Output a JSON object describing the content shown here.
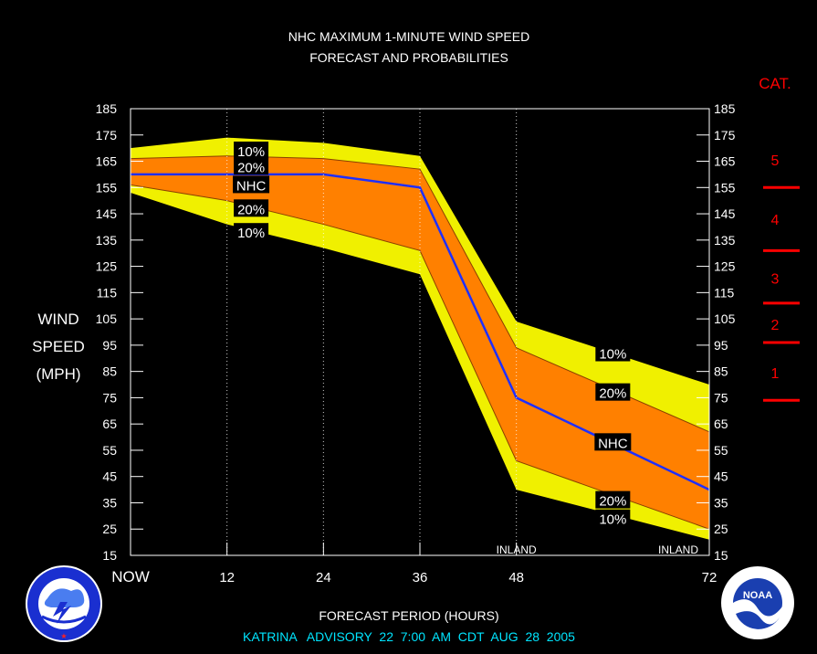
{
  "chart_data": {
    "type": "area",
    "title": "NHC MAXIMUM 1-MINUTE WIND SPEED",
    "subtitle": "FORECAST AND PROBABILITIES",
    "xlabel": "FORECAST PERIOD (HOURS)",
    "ylabel_lines": [
      "WIND",
      "SPEED",
      "(MPH)"
    ],
    "x_ticks": [
      {
        "x": 0,
        "label": "NOW"
      },
      {
        "x": 12,
        "label": "12"
      },
      {
        "x": 24,
        "label": "24"
      },
      {
        "x": 36,
        "label": "36"
      },
      {
        "x": 48,
        "label": "48"
      },
      {
        "x": 72,
        "label": "72"
      }
    ],
    "xlim": [
      0,
      72
    ],
    "ylim": [
      15,
      185
    ],
    "y_ticks": [
      15,
      25,
      35,
      45,
      55,
      65,
      75,
      85,
      95,
      105,
      115,
      125,
      135,
      145,
      155,
      165,
      175,
      185
    ],
    "x": [
      0,
      12,
      24,
      36,
      48,
      72
    ],
    "series": [
      {
        "name": "10%",
        "values": [
          170,
          174,
          172,
          167,
          104,
          80
        ],
        "color": "#f0f000"
      },
      {
        "name": "20%",
        "values": [
          166,
          167,
          166,
          162,
          94,
          62
        ],
        "color": "#ff8000"
      },
      {
        "name": "NHC",
        "values": [
          160,
          160,
          160,
          155,
          75,
          40
        ],
        "color": "#1f2fff"
      },
      {
        "name": "20%",
        "values": [
          156,
          150,
          141,
          131,
          51,
          25
        ],
        "color": "#ff8000"
      },
      {
        "name": "10%",
        "values": [
          153,
          141,
          132,
          122,
          40,
          21
        ],
        "color": "#f0f000"
      }
    ],
    "series_labels": [
      {
        "text": "10%",
        "x": 15,
        "y": 169
      },
      {
        "text": "20%",
        "x": 15,
        "y": 163
      },
      {
        "text": "NHC",
        "x": 15,
        "y": 156
      },
      {
        "text": "20%",
        "x": 15,
        "y": 147
      },
      {
        "text": "10%",
        "x": 15,
        "y": 138
      },
      {
        "text": "10%",
        "x": 60,
        "y": 92
      },
      {
        "text": "20%",
        "x": 60,
        "y": 77
      },
      {
        "text": "NHC",
        "x": 60,
        "y": 58
      },
      {
        "text": "20%",
        "x": 60,
        "y": 36
      },
      {
        "text": "10%",
        "x": 60,
        "y": 29
      }
    ],
    "annotations": [
      {
        "text": "INLAND",
        "x": 48
      },
      {
        "text": "INLAND",
        "x": 72
      }
    ],
    "category_scale": {
      "title": "CAT.",
      "categories": [
        {
          "label": "5",
          "min": 156,
          "max": 185
        },
        {
          "label": "4",
          "min": 131,
          "max": 155
        },
        {
          "label": "3",
          "min": 111,
          "max": 130
        },
        {
          "label": "2",
          "min": 96,
          "max": 110
        },
        {
          "label": "1",
          "min": 74,
          "max": 95
        }
      ],
      "boundaries": [
        155,
        131,
        111,
        96,
        74
      ],
      "color": "#ff0000"
    },
    "grid": "vertical dotted at 12, 24, 36, 48 hours",
    "background": "#000000"
  },
  "footer": {
    "advisory": "KATRINA   ADVISORY  22  7:00  AM  CDT  AUG  28  2005"
  },
  "logos": {
    "left": {
      "text": "NATIONAL WEATHER SERVICE"
    },
    "right": {
      "text": "NOAA"
    }
  }
}
